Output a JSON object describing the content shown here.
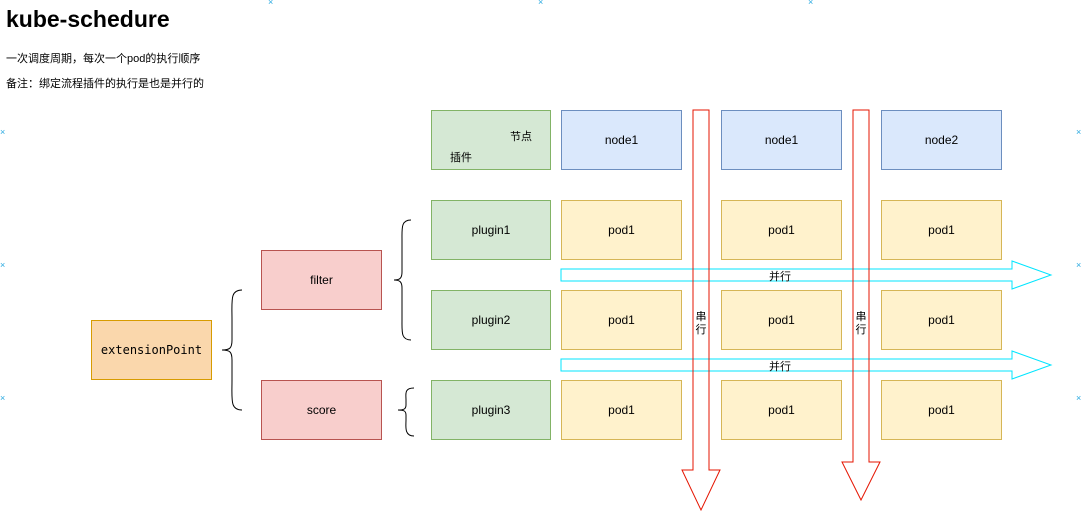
{
  "title": "kube-schedure",
  "subtitle1": "一次调度周期，每次一个pod的执行顺序",
  "subtitle2": "备注：绑定流程插件的执行是也是并行的",
  "header_cell": {
    "top_right": "节点",
    "bottom_left": "插件"
  },
  "nodes": [
    "node1",
    "node1",
    "node2"
  ],
  "plugins": [
    "plugin1",
    "plugin2",
    "plugin3"
  ],
  "pod_label": "pod1",
  "extension_point": "extensionPoint",
  "stages": {
    "filter": "filter",
    "score": "score"
  },
  "serial_label": "串行",
  "parallel_label": "并行",
  "colors": {
    "green_fill": "#d5e8d4",
    "blue_fill": "#dae8fc",
    "yellow_fill": "#fff2cc",
    "red_fill": "#f8cecc",
    "orange_fill": "#fad7ac",
    "serial_arrow": "#e51400",
    "parallel_arrow": "#00e5ff"
  }
}
